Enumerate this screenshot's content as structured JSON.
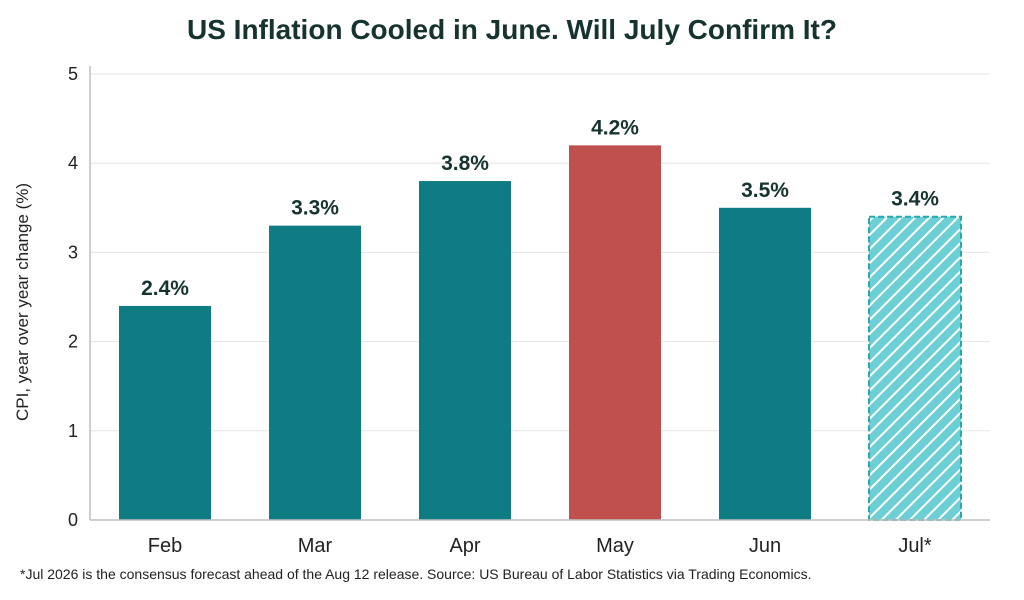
{
  "chart_data": {
    "type": "bar",
    "title": "US Inflation Cooled in June. Will July Confirm It?",
    "ylabel": "CPI, year over year change (%)",
    "xlabel": "",
    "ylim": [
      0,
      5
    ],
    "yticks": [
      0,
      1,
      2,
      3,
      4,
      5
    ],
    "grid": true,
    "categories": [
      "Feb",
      "Mar",
      "Apr",
      "May",
      "Jun",
      "Jul*"
    ],
    "values": [
      2.4,
      3.3,
      3.8,
      4.2,
      3.5,
      3.4
    ],
    "value_labels": [
      "2.4%",
      "3.3%",
      "3.8%",
      "4.2%",
      "3.5%",
      "3.4%"
    ],
    "highlight_category": "May",
    "forecast_category": "Jul*",
    "colors": {
      "bar": "#0f7b83",
      "highlight": "#c0504d",
      "forecast": "#6ccfd6",
      "forecast_stripe": "#ffffff",
      "forecast_border": "#2aa8b0",
      "grid": "#e6e6e6",
      "axis": "#bfbfbf",
      "label": "#163330",
      "tick": "#222222"
    }
  },
  "footnote": "*Jul 2026 is the consensus forecast ahead of the Aug 12 release. Source: US Bureau of Labor Statistics via Trading Economics."
}
